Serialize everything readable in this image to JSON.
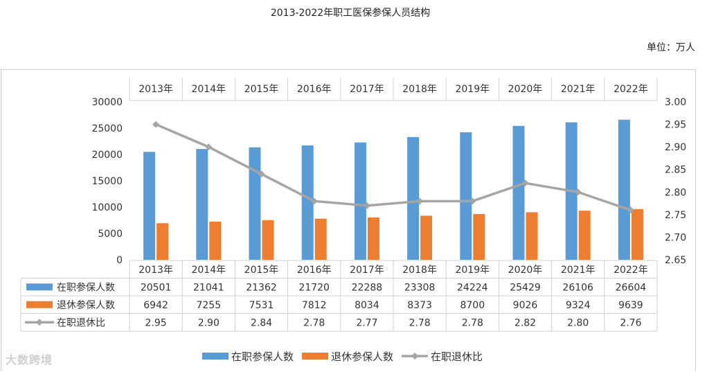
{
  "page": {
    "title": "2013-2022年职工医保参保人员结构",
    "unit": "单位：万人",
    "watermark": "大数跨境"
  },
  "chart_data": {
    "type": "bar",
    "title": "2013-2022年职工医保参保人员结构",
    "categories": [
      "2013年",
      "2014年",
      "2015年",
      "2016年",
      "2017年",
      "2018年",
      "2019年",
      "2020年",
      "2021年",
      "2022年"
    ],
    "series": [
      {
        "name": "在职参保人数",
        "type": "bar",
        "axis": "left",
        "color": "#5b9bd5",
        "values": [
          20501,
          21041,
          21362,
          21720,
          22288,
          23308,
          24224,
          25429,
          26106,
          26604
        ],
        "labels": [
          "20501",
          "21041",
          "21362",
          "21720",
          "22288",
          "23308",
          "24224",
          "25429",
          "26106",
          "26604"
        ]
      },
      {
        "name": "退休参保人数",
        "type": "bar",
        "axis": "left",
        "color": "#ed7d31",
        "values": [
          6942,
          7255,
          7531,
          7812,
          8034,
          8373,
          8700,
          9026,
          9324,
          9639
        ],
        "labels": [
          "6942",
          "7255",
          "7531",
          "7812",
          "8034",
          "8373",
          "8700",
          "9026",
          "9324",
          "9639"
        ]
      },
      {
        "name": "在职退休比",
        "type": "line",
        "axis": "right",
        "color": "#a5a5a5",
        "values": [
          2.95,
          2.9,
          2.84,
          2.78,
          2.77,
          2.78,
          2.78,
          2.82,
          2.8,
          2.76
        ],
        "labels": [
          "2.95",
          "2.90",
          "2.84",
          "2.78",
          "2.77",
          "2.78",
          "2.78",
          "2.82",
          "2.80",
          "2.76"
        ]
      }
    ],
    "y_left": {
      "min": 0,
      "max": 30000,
      "ticks": [
        "0",
        "5000",
        "10000",
        "15000",
        "20000",
        "25000",
        "30000"
      ]
    },
    "y_right": {
      "min": 2.65,
      "max": 3.0,
      "ticks": [
        "2.65",
        "2.70",
        "2.75",
        "2.80",
        "2.85",
        "2.90",
        "2.95",
        "3.00"
      ]
    },
    "legend_position": "bottom",
    "data_table": true,
    "grid": false
  }
}
